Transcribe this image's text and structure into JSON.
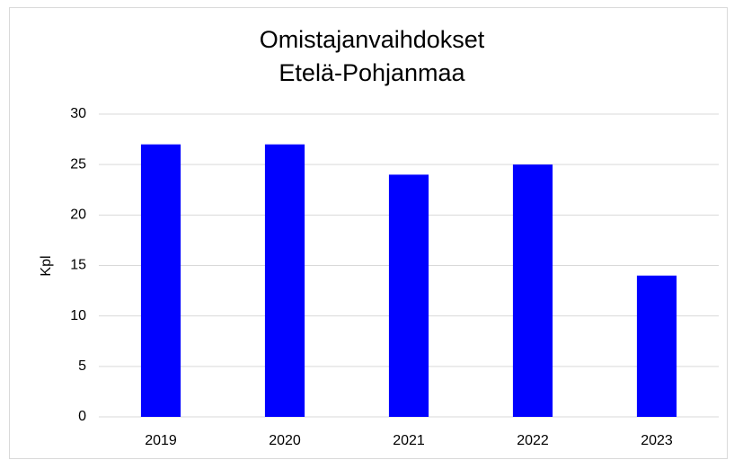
{
  "chart_data": {
    "type": "bar",
    "title": "Omistajanvaihdokset",
    "subtitle": "Etelä-Pohjanmaa",
    "ylabel": "Kpl",
    "categories": [
      "2019",
      "2020",
      "2021",
      "2022",
      "2023"
    ],
    "values": [
      27,
      27,
      24,
      25,
      14
    ],
    "color": "#0000ff",
    "ylim": [
      0,
      30
    ],
    "yticks": [
      0,
      5,
      10,
      15,
      20,
      25,
      30
    ],
    "grid": true
  }
}
